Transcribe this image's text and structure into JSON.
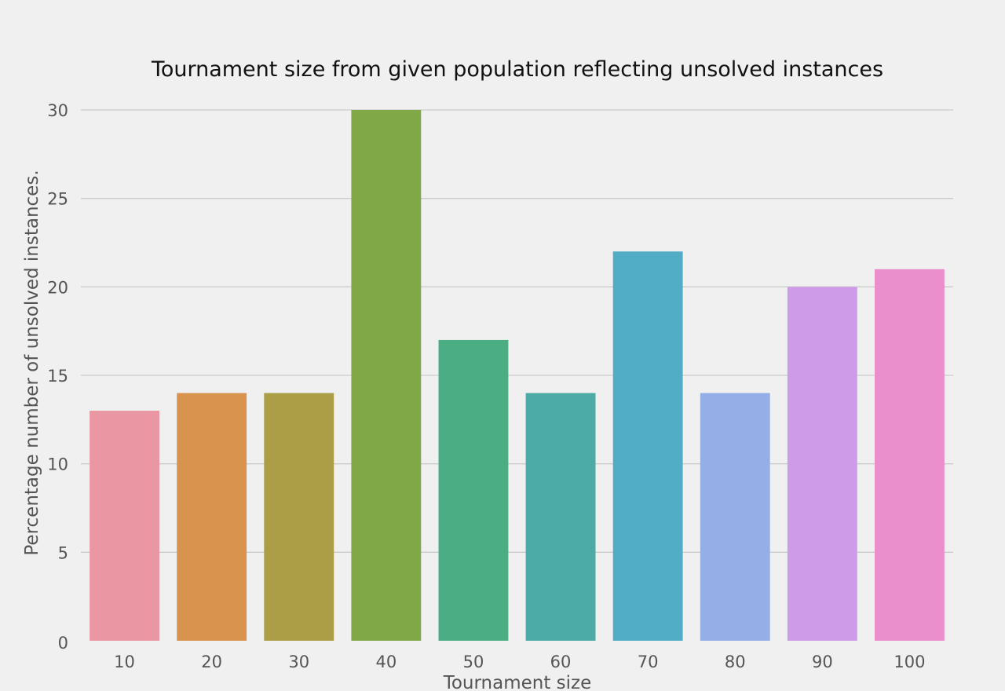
{
  "chart_data": {
    "type": "bar",
    "title": "Tournament size from given population reflecting unsolved instances",
    "xlabel": "Tournament size",
    "ylabel": "Percentage number of unsolved instances.",
    "categories": [
      "10",
      "20",
      "30",
      "40",
      "50",
      "60",
      "70",
      "80",
      "90",
      "100"
    ],
    "values": [
      13,
      14,
      14,
      30,
      17,
      14,
      22,
      14,
      20,
      21
    ],
    "colors": [
      "#ea96a3",
      "#d8944f",
      "#ab9e47",
      "#80a846",
      "#4bae82",
      "#4dab a7",
      "#51acc6",
      "#96aee7",
      "#ce9be8",
      "#eb8fcc"
    ],
    "ylim": [
      0,
      30
    ],
    "yticks": [
      0,
      5,
      10,
      15,
      20,
      25,
      30
    ],
    "grid": "horizontal",
    "legend": "none"
  }
}
